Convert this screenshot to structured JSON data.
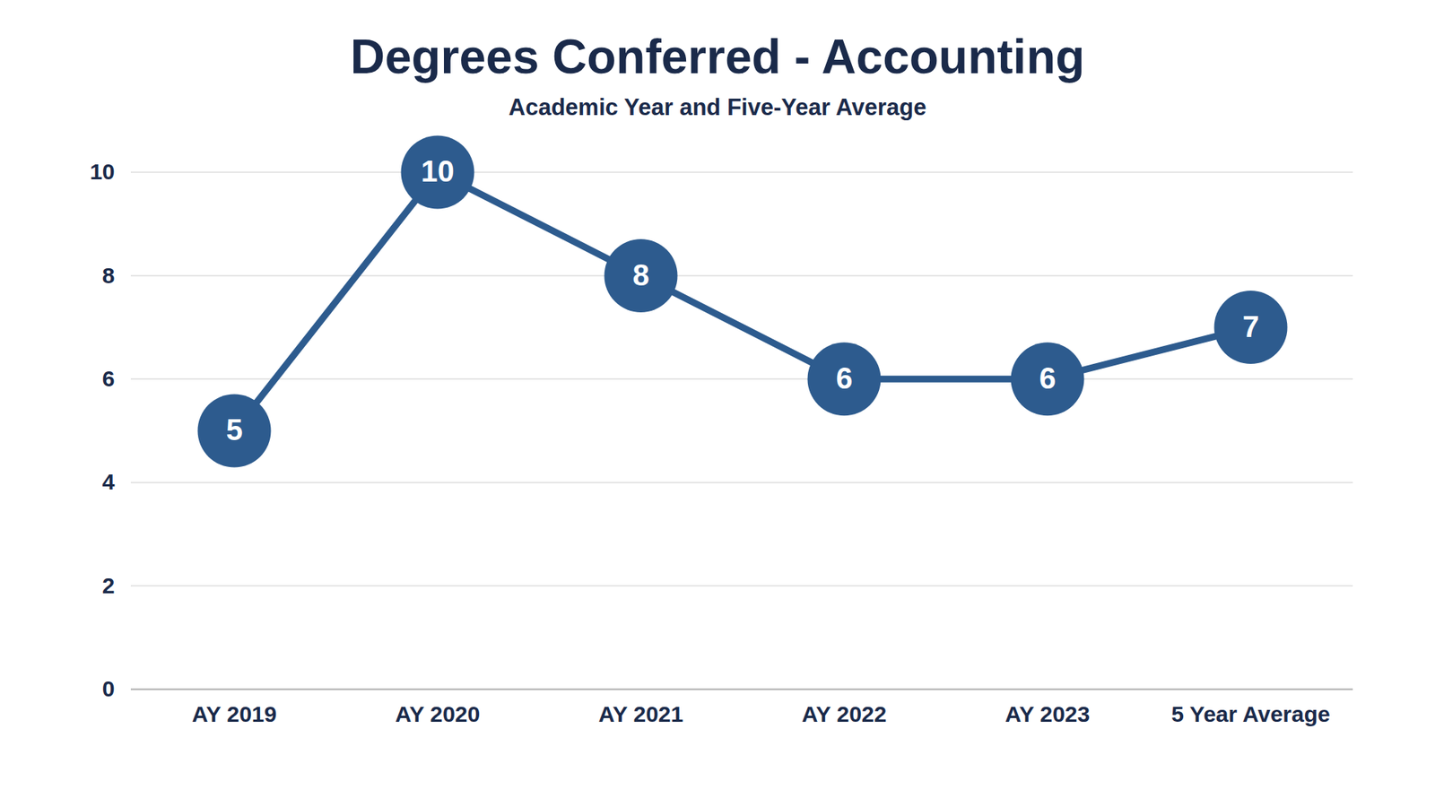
{
  "chart_data": {
    "type": "line",
    "title": "Degrees Conferred - Accounting",
    "subtitle": "Academic Year and Five-Year Average",
    "categories": [
      "AY 2019",
      "AY 2020",
      "AY 2021",
      "AY 2022",
      "AY 2023",
      "5 Year Average"
    ],
    "values": [
      5,
      10,
      8,
      6,
      6,
      7
    ],
    "color": "#2d5b8e",
    "ylim": [
      0,
      10
    ],
    "yticks": [
      0,
      2,
      4,
      6,
      8,
      10
    ],
    "grid": true,
    "data_labels": true,
    "marker": "circle",
    "line_style": "solid"
  }
}
